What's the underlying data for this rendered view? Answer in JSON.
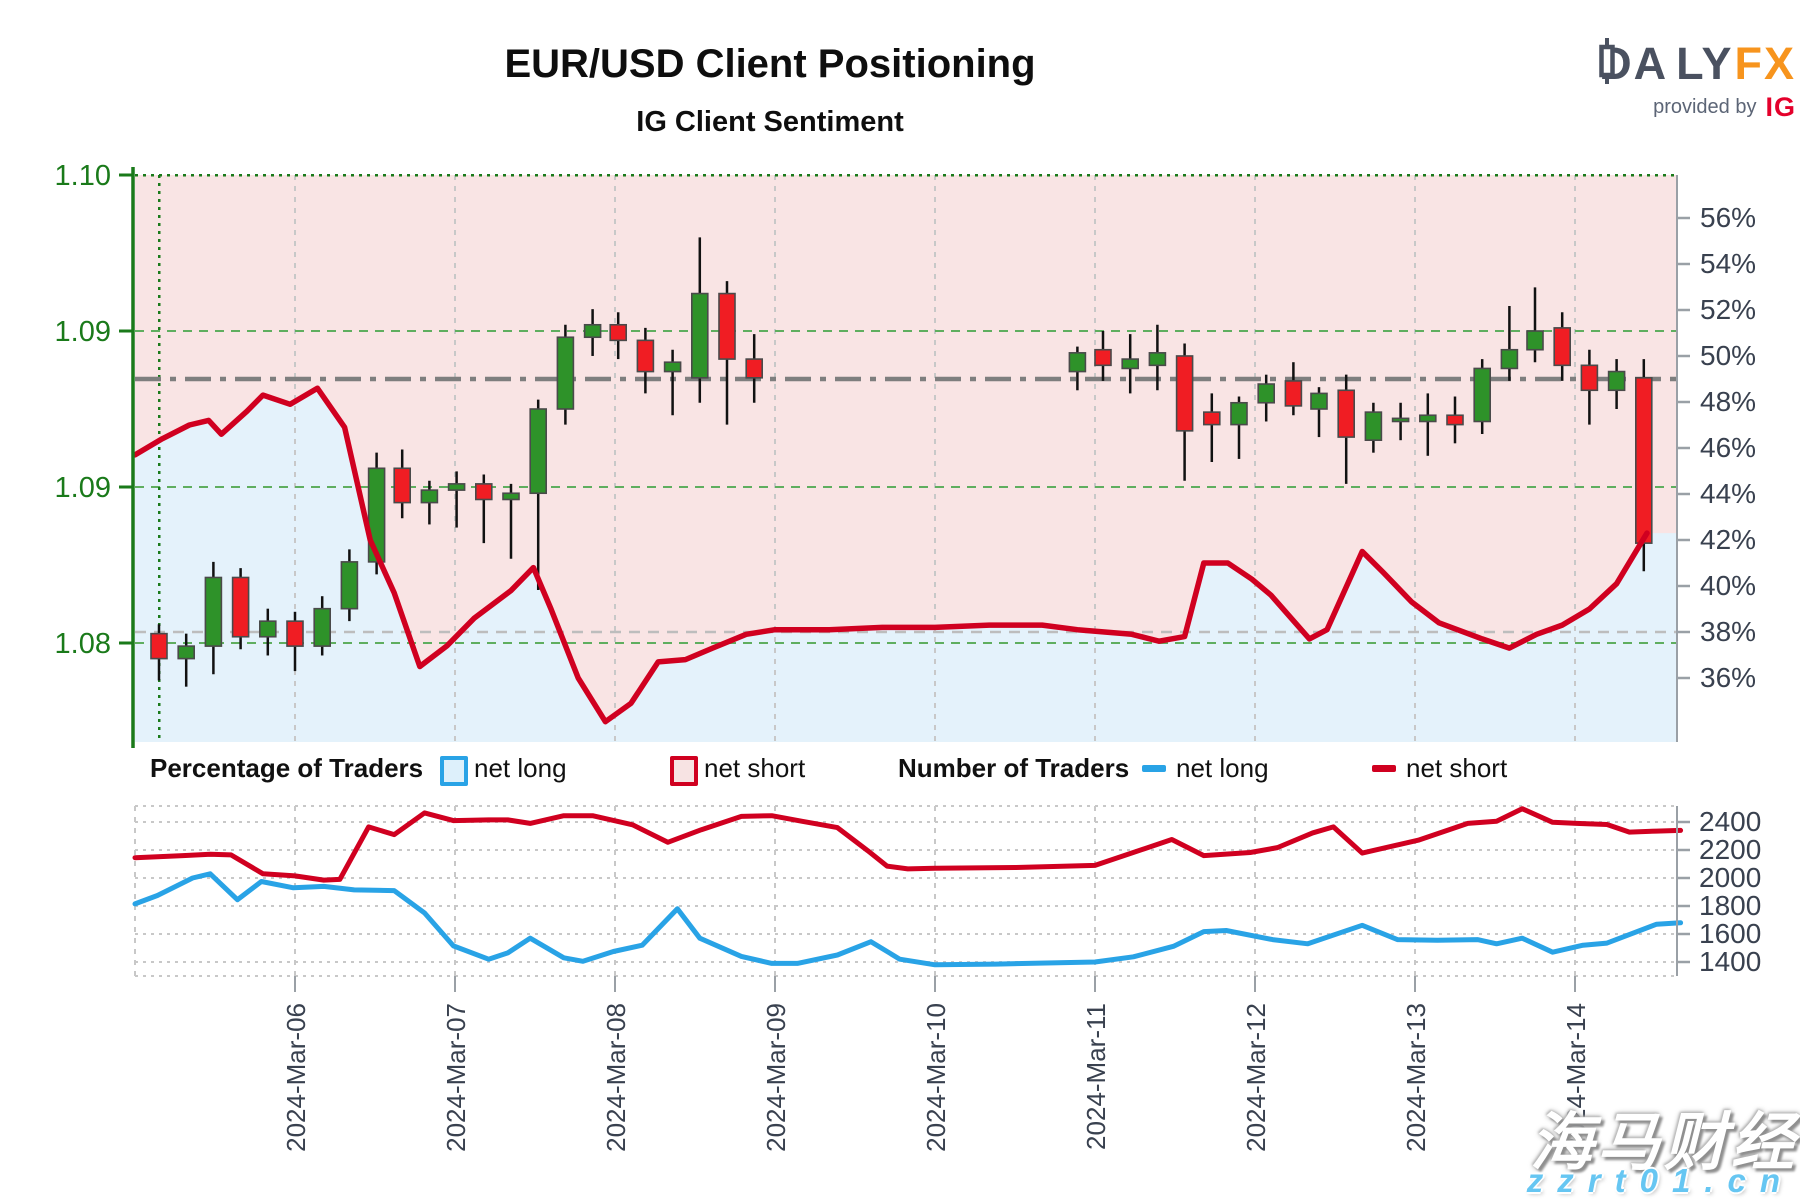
{
  "header": {
    "title": "EUR/USD Client Positioning",
    "subtitle": "IG Client Sentiment",
    "logo": {
      "brand_a": "DA",
      "brand_b": "LY",
      "brand_fx": "FX",
      "provided_by": "provided by",
      "provider": "IG"
    }
  },
  "legend": {
    "percent_title": "Percentage of Traders",
    "count_title": "Number of Traders",
    "net_long": "net long",
    "net_short": "net short"
  },
  "watermark": {
    "line1": "海马财经",
    "line2": "zzrt01.cn"
  },
  "colors": {
    "candle_up": "#2e9229",
    "candle_down": "#f01d23",
    "candle_edge": "#4a4a4a",
    "sentiment_line": "#d00020",
    "count_long_line": "#29a3e6",
    "count_short_line": "#d00020",
    "shade_above": "#f9e4e4",
    "shade_below": "#e4f2fb",
    "price_axis": "#1a7a1a",
    "label_color": "#39414f",
    "grid_green": "#5fae5f",
    "grid_gray": "#c8c8c8",
    "ref_dashdot": "#7e7e7e",
    "ref_dashed": "#bdbdbd",
    "logo_dark": "#4a5160",
    "logo_orange": "#f7941d",
    "ig_red": "#e4002b"
  },
  "chart_data": [
    {
      "type": "candlestick",
      "title": "IG Client Sentiment",
      "x_unit": "days (0 = 2024-Mar-05, ticks at each date)",
      "x_ticks": [
        {
          "d": 1,
          "label": "2024-Mar-06"
        },
        {
          "d": 2,
          "label": "2024-Mar-07"
        },
        {
          "d": 3,
          "label": "2024-Mar-08"
        },
        {
          "d": 4,
          "label": "2024-Mar-09"
        },
        {
          "d": 5,
          "label": "2024-Mar-10"
        },
        {
          "d": 6,
          "label": "2024-Mar-11"
        },
        {
          "d": 7,
          "label": "2024-Mar-12"
        },
        {
          "d": 8,
          "label": "2024-Mar-13"
        },
        {
          "d": 9,
          "label": "2024-Mar-14"
        }
      ],
      "price_axis": {
        "side": "left",
        "ticks": [
          {
            "price": 1.1,
            "label": "1.10"
          },
          {
            "price": 1.095,
            "label": "1.09"
          },
          {
            "price": 1.09,
            "label": "1.09"
          },
          {
            "price": 1.085,
            "label": "1.08"
          }
        ]
      },
      "percent_axis": {
        "side": "right",
        "min": 36,
        "max": 56,
        "step": 2,
        "ticks": [
          {
            "v": 56,
            "label": "56%"
          },
          {
            "v": 54,
            "label": "54%"
          },
          {
            "v": 52,
            "label": "52%"
          },
          {
            "v": 50,
            "label": "50%"
          },
          {
            "v": 48,
            "label": "48%"
          },
          {
            "v": 46,
            "label": "46%"
          },
          {
            "v": 44,
            "label": "44%"
          },
          {
            "v": 42,
            "label": "42%"
          },
          {
            "v": 40,
            "label": "40%"
          },
          {
            "v": 38,
            "label": "38%"
          },
          {
            "v": 36,
            "label": "36%"
          }
        ]
      },
      "reference_lines": {
        "dash_dot_percent": 49.0,
        "gray_dashed_percent": 38.0,
        "series_start_vline_d": 0.15
      },
      "candles_ohlc_4h": [
        [
          0.15,
          1.0853,
          1.0856,
          1.0838,
          1.0845
        ],
        [
          0.32,
          1.0845,
          1.0853,
          1.0836,
          1.0849
        ],
        [
          0.49,
          1.0849,
          1.0876,
          1.084,
          1.0871
        ],
        [
          0.66,
          1.0871,
          1.0874,
          1.0848,
          1.0852
        ],
        [
          0.83,
          1.0852,
          1.0861,
          1.0846,
          1.0857
        ],
        [
          1.0,
          1.0857,
          1.086,
          1.0841,
          1.0849
        ],
        [
          1.17,
          1.0849,
          1.0865,
          1.0846,
          1.0861
        ],
        [
          1.34,
          1.0861,
          1.088,
          1.0857,
          1.0876
        ],
        [
          1.51,
          1.0876,
          1.0911,
          1.0872,
          1.0906
        ],
        [
          1.67,
          1.0906,
          1.0912,
          1.089,
          1.0895
        ],
        [
          1.84,
          1.0895,
          1.0902,
          1.0888,
          1.0899
        ],
        [
          2.01,
          1.0899,
          1.0905,
          1.0887,
          1.0901
        ],
        [
          2.18,
          1.0901,
          1.0904,
          1.0882,
          1.0896
        ],
        [
          2.35,
          1.0896,
          1.0901,
          1.0877,
          1.0898
        ],
        [
          2.52,
          1.0898,
          1.0928,
          1.0867,
          1.0925
        ],
        [
          2.69,
          1.0925,
          1.0952,
          1.092,
          1.0948
        ],
        [
          2.86,
          1.0948,
          1.0957,
          1.0942,
          1.0952
        ],
        [
          3.02,
          1.0952,
          1.0956,
          1.0941,
          1.0947
        ],
        [
          3.19,
          1.0947,
          1.0951,
          1.093,
          1.0937
        ],
        [
          3.36,
          1.0937,
          1.0944,
          1.0923,
          1.094
        ],
        [
          3.53,
          1.0935,
          1.098,
          1.0927,
          1.0962
        ],
        [
          3.7,
          1.0962,
          1.0966,
          1.092,
          1.0941
        ],
        [
          3.87,
          1.0941,
          1.0949,
          1.0927,
          1.0935
        ],
        [
          5.89,
          1.0937,
          1.0945,
          1.0931,
          1.0943
        ],
        [
          6.05,
          1.0944,
          1.095,
          1.0934,
          1.0939
        ],
        [
          6.22,
          1.0938,
          1.0949,
          1.093,
          1.0941
        ],
        [
          6.39,
          1.0939,
          1.0952,
          1.0931,
          1.0943
        ],
        [
          6.56,
          1.0942,
          1.0946,
          1.0902,
          1.0918
        ],
        [
          6.73,
          1.0924,
          1.093,
          1.0908,
          1.092
        ],
        [
          6.9,
          1.092,
          1.0929,
          1.0909,
          1.0927
        ],
        [
          7.07,
          1.0927,
          1.0936,
          1.0921,
          1.0933
        ],
        [
          7.24,
          1.0934,
          1.094,
          1.0923,
          1.0926
        ],
        [
          7.4,
          1.0925,
          1.0932,
          1.0916,
          1.093
        ],
        [
          7.57,
          1.0931,
          1.0936,
          1.0901,
          1.0916
        ],
        [
          7.74,
          1.0915,
          1.0927,
          1.0911,
          1.0924
        ],
        [
          7.91,
          1.0921,
          1.0927,
          1.0915,
          1.0922
        ],
        [
          8.08,
          1.0921,
          1.093,
          1.091,
          1.0923
        ],
        [
          8.25,
          1.0923,
          1.0929,
          1.0914,
          1.092
        ],
        [
          8.42,
          1.0921,
          1.0941,
          1.0917,
          1.0938
        ],
        [
          8.59,
          1.0938,
          1.0958,
          1.0934,
          1.0944
        ],
        [
          8.75,
          1.0944,
          1.0964,
          1.094,
          1.095
        ],
        [
          8.92,
          1.0951,
          1.0956,
          1.0934,
          1.0939
        ],
        [
          9.09,
          1.0939,
          1.0944,
          1.092,
          1.0931
        ],
        [
          9.26,
          1.0931,
          1.0941,
          1.0925,
          1.0937
        ],
        [
          9.43,
          1.0935,
          1.0941,
          1.0873,
          1.0882
        ]
      ],
      "sentiment_percent_net_long": [
        [
          0.0,
          45.7
        ],
        [
          0.17,
          46.4
        ],
        [
          0.34,
          47.0
        ],
        [
          0.46,
          47.2
        ],
        [
          0.54,
          46.6
        ],
        [
          0.7,
          47.6
        ],
        [
          0.8,
          48.3
        ],
        [
          0.97,
          47.9
        ],
        [
          1.14,
          48.6
        ],
        [
          1.31,
          46.9
        ],
        [
          1.47,
          42.0
        ],
        [
          1.62,
          39.7
        ],
        [
          1.78,
          36.5
        ],
        [
          1.95,
          37.4
        ],
        [
          2.12,
          38.6
        ],
        [
          2.35,
          39.8
        ],
        [
          2.49,
          40.8
        ],
        [
          2.6,
          39.0
        ],
        [
          2.77,
          36.0
        ],
        [
          2.94,
          34.1
        ],
        [
          3.1,
          34.9
        ],
        [
          3.27,
          36.7
        ],
        [
          3.44,
          36.8
        ],
        [
          3.61,
          37.3
        ],
        [
          3.82,
          37.9
        ],
        [
          4.0,
          38.1
        ],
        [
          4.34,
          38.1
        ],
        [
          4.67,
          38.2
        ],
        [
          5.0,
          38.2
        ],
        [
          5.34,
          38.3
        ],
        [
          5.67,
          38.3
        ],
        [
          5.89,
          38.1
        ],
        [
          6.06,
          38.0
        ],
        [
          6.23,
          37.9
        ],
        [
          6.4,
          37.6
        ],
        [
          6.56,
          37.8
        ],
        [
          6.68,
          41.0
        ],
        [
          6.83,
          41.0
        ],
        [
          6.98,
          40.3
        ],
        [
          7.1,
          39.6
        ],
        [
          7.34,
          37.7
        ],
        [
          7.45,
          38.1
        ],
        [
          7.67,
          41.5
        ],
        [
          7.8,
          40.6
        ],
        [
          7.98,
          39.3
        ],
        [
          8.15,
          38.4
        ],
        [
          8.42,
          37.7
        ],
        [
          8.59,
          37.3
        ],
        [
          8.76,
          37.9
        ],
        [
          8.92,
          38.3
        ],
        [
          9.09,
          39.0
        ],
        [
          9.26,
          40.1
        ],
        [
          9.45,
          42.3
        ]
      ]
    },
    {
      "type": "line",
      "title": "Number of Traders",
      "y_axis": {
        "side": "right",
        "ticks": [
          {
            "v": 2400,
            "label": "2400"
          },
          {
            "v": 2200,
            "label": "2200"
          },
          {
            "v": 2000,
            "label": "2000"
          },
          {
            "v": 1800,
            "label": "1800"
          },
          {
            "v": 1600,
            "label": "1600"
          },
          {
            "v": 1400,
            "label": "1400"
          }
        ]
      },
      "series": [
        {
          "name": "net long",
          "color": "#29a3e6",
          "points": [
            [
              0.0,
              1815
            ],
            [
              0.14,
              1875
            ],
            [
              0.36,
              2000
            ],
            [
              0.47,
              2030
            ],
            [
              0.64,
              1845
            ],
            [
              0.79,
              1975
            ],
            [
              0.99,
              1930
            ],
            [
              1.18,
              1940
            ],
            [
              1.37,
              1915
            ],
            [
              1.62,
              1910
            ],
            [
              1.81,
              1750
            ],
            [
              1.99,
              1515
            ],
            [
              2.21,
              1420
            ],
            [
              2.33,
              1465
            ],
            [
              2.47,
              1570
            ],
            [
              2.68,
              1430
            ],
            [
              2.8,
              1405
            ],
            [
              2.99,
              1475
            ],
            [
              3.17,
              1520
            ],
            [
              3.39,
              1780
            ],
            [
              3.53,
              1570
            ],
            [
              3.79,
              1440
            ],
            [
              3.98,
              1390
            ],
            [
              4.14,
              1390
            ],
            [
              4.39,
              1450
            ],
            [
              4.6,
              1545
            ],
            [
              4.78,
              1420
            ],
            [
              5.0,
              1380
            ],
            [
              5.38,
              1385
            ],
            [
              6.0,
              1400
            ],
            [
              6.24,
              1437
            ],
            [
              6.49,
              1512
            ],
            [
              6.68,
              1617
            ],
            [
              6.82,
              1625
            ],
            [
              7.11,
              1560
            ],
            [
              7.33,
              1530
            ],
            [
              7.67,
              1662
            ],
            [
              7.89,
              1560
            ],
            [
              8.14,
              1555
            ],
            [
              8.39,
              1560
            ],
            [
              8.51,
              1530
            ],
            [
              8.67,
              1570
            ],
            [
              8.86,
              1470
            ],
            [
              9.05,
              1520
            ],
            [
              9.2,
              1535
            ],
            [
              9.51,
              1670
            ],
            [
              9.66,
              1680
            ]
          ]
        },
        {
          "name": "net short",
          "color": "#d00020",
          "points": [
            [
              0.0,
              2145
            ],
            [
              0.3,
              2160
            ],
            [
              0.47,
              2170
            ],
            [
              0.6,
              2165
            ],
            [
              0.8,
              2030
            ],
            [
              1.0,
              2015
            ],
            [
              1.18,
              1985
            ],
            [
              1.28,
              1990
            ],
            [
              1.46,
              2365
            ],
            [
              1.62,
              2310
            ],
            [
              1.81,
              2465
            ],
            [
              1.99,
              2410
            ],
            [
              2.21,
              2415
            ],
            [
              2.33,
              2415
            ],
            [
              2.47,
              2390
            ],
            [
              2.68,
              2445
            ],
            [
              2.86,
              2445
            ],
            [
              3.11,
              2380
            ],
            [
              3.33,
              2255
            ],
            [
              3.54,
              2345
            ],
            [
              3.79,
              2440
            ],
            [
              3.98,
              2445
            ],
            [
              4.17,
              2405
            ],
            [
              4.39,
              2360
            ],
            [
              4.58,
              2195
            ],
            [
              4.7,
              2085
            ],
            [
              4.83,
              2065
            ],
            [
              5.0,
              2070
            ],
            [
              5.5,
              2075
            ],
            [
              6.0,
              2090
            ],
            [
              6.48,
              2275
            ],
            [
              6.68,
              2160
            ],
            [
              6.97,
              2182
            ],
            [
              7.14,
              2217
            ],
            [
              7.36,
              2322
            ],
            [
              7.49,
              2365
            ],
            [
              7.67,
              2178
            ],
            [
              8.02,
              2270
            ],
            [
              8.33,
              2390
            ],
            [
              8.51,
              2405
            ],
            [
              8.67,
              2495
            ],
            [
              8.86,
              2398
            ],
            [
              9.01,
              2390
            ],
            [
              9.2,
              2382
            ],
            [
              9.34,
              2328
            ],
            [
              9.51,
              2335
            ],
            [
              9.66,
              2340
            ]
          ]
        }
      ]
    }
  ]
}
